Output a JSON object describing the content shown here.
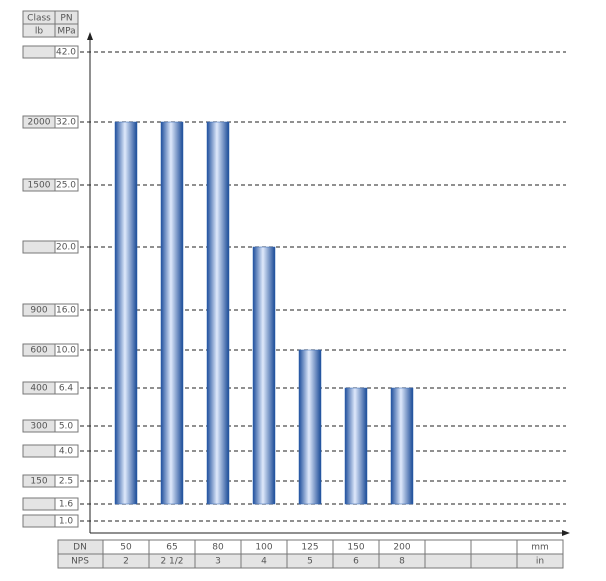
{
  "chart_data": {
    "type": "bar",
    "categories": [
      "50",
      "65",
      "80",
      "100",
      "125",
      "150",
      "200"
    ],
    "values": [
      32,
      32,
      32,
      20,
      10,
      6.4,
      6.4
    ],
    "color": "#2f62b0",
    "yticks": [
      {
        "value": 42,
        "label": "42.0"
      },
      {
        "value": 32,
        "label": "32.0"
      },
      {
        "value": 25,
        "label": "25.0"
      },
      {
        "value": 20,
        "label": "20.0"
      },
      {
        "value": 16,
        "label": "16.0"
      },
      {
        "value": 10,
        "label": "10.0"
      },
      6.4,
      {
        "value": 5,
        "label": "5.0"
      },
      {
        "value": 4,
        "label": "4.0"
      },
      2.5,
      1.6,
      {
        "value": 1,
        "label": "1.0"
      }
    ],
    "class_labels": [
      null,
      "2000",
      "1500",
      null,
      "900",
      "600",
      "400",
      "300",
      null,
      "150",
      null,
      null
    ],
    "y_header": [
      [
        "Class",
        "PN"
      ],
      [
        "lb",
        "MPa"
      ]
    ],
    "x_rows": [
      {
        "label": "DN",
        "unit": "mm"
      },
      {
        "label": "NPS",
        "unit": "in",
        "values": [
          "2",
          "2 1/2",
          "3",
          "4",
          "5",
          "6",
          "8"
        ]
      }
    ],
    "grid": true
  }
}
